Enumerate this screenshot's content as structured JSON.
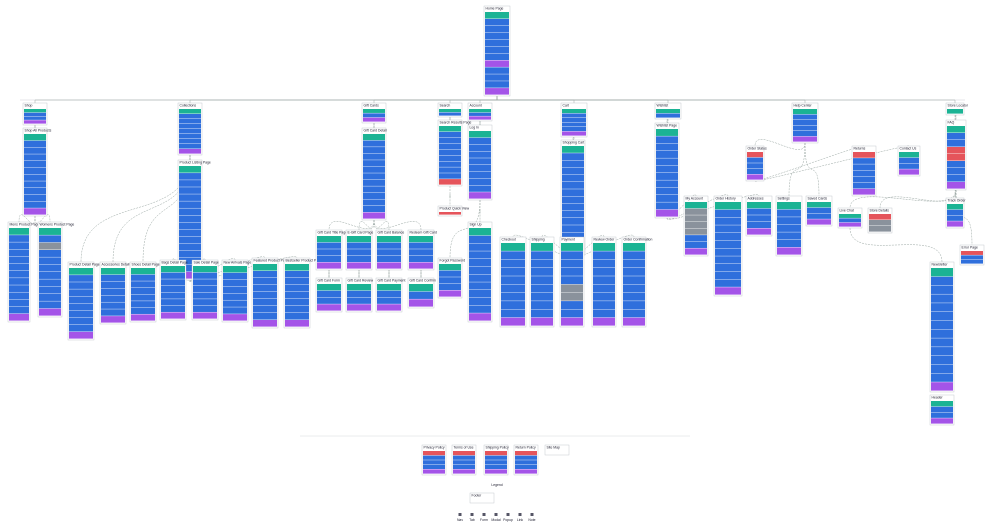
{
  "nodes": [
    {
      "label": "Home Page"
    },
    {
      "label": "Shop"
    },
    {
      "label": "Collections"
    },
    {
      "label": "Gift Cards"
    },
    {
      "label": "Search"
    },
    {
      "label": "Account"
    },
    {
      "label": "Cart"
    },
    {
      "label": "Wishlist"
    },
    {
      "label": "Help Center"
    },
    {
      "label": "Store Locator"
    },
    {
      "label": "Shop All Products"
    },
    {
      "label": "Product Listing Page"
    },
    {
      "label": "Gift Card Detail"
    },
    {
      "label": "Search Results Page"
    },
    {
      "label": "Log In"
    },
    {
      "label": "Shopping Cart"
    },
    {
      "label": "Wishlist Page"
    },
    {
      "label": "FAQ"
    },
    {
      "label": "Mens Product Page"
    },
    {
      "label": "Womens Product Page"
    },
    {
      "label": "Product Detail Page"
    },
    {
      "label": "Accessories Detail Page"
    },
    {
      "label": "Shoes Detail Page"
    },
    {
      "label": "Bags Detail Page"
    },
    {
      "label": "Sale Detail Page"
    },
    {
      "label": "New Arrivals Page"
    },
    {
      "label": "Featured Product Page"
    },
    {
      "label": "Bestseller Product Page"
    },
    {
      "label": "Gift Card Title Page"
    },
    {
      "label": "E-Gift Card Page"
    },
    {
      "label": "Gift Card Balance"
    },
    {
      "label": "Redeem Gift Card"
    },
    {
      "label": "Gift Card Form"
    },
    {
      "label": "Gift Card Review"
    },
    {
      "label": "Gift Card Payment"
    },
    {
      "label": "Gift Card Confirm"
    },
    {
      "label": "Product Quick View"
    },
    {
      "label": "Sign Up"
    },
    {
      "label": "Forgot Password"
    },
    {
      "label": "Checkout"
    },
    {
      "label": "Shipping"
    },
    {
      "label": "Payment"
    },
    {
      "label": "Review Order"
    },
    {
      "label": "Order Confirmation"
    },
    {
      "label": "My Account"
    },
    {
      "label": "Order History"
    },
    {
      "label": "Addresses"
    },
    {
      "label": "Settings"
    },
    {
      "label": "Saved Cards"
    },
    {
      "label": "Order Status"
    },
    {
      "label": "Returns"
    },
    {
      "label": "Contact Us"
    },
    {
      "label": "Live Chat"
    },
    {
      "label": "Store Details"
    },
    {
      "label": "Newsletter"
    },
    {
      "label": "Error Page"
    },
    {
      "label": "Track Order"
    },
    {
      "label": "Privacy Policy"
    },
    {
      "label": "Terms of Use"
    },
    {
      "label": "Shipping Policy"
    },
    {
      "label": "Return Policy"
    },
    {
      "label": "Site Map"
    },
    {
      "label": "Header"
    },
    {
      "label": "Footer"
    }
  ],
  "legend": {
    "title": "Legend",
    "items": [
      "Nav",
      "Tab",
      "Form",
      "Modal",
      "Popup",
      "Link",
      "Note"
    ]
  }
}
